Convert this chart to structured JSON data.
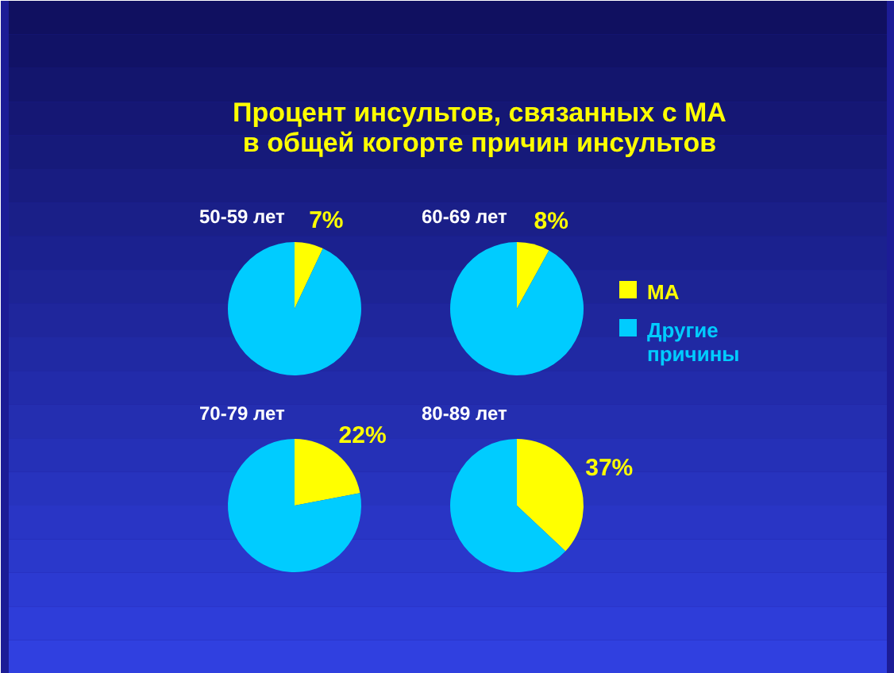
{
  "chart_data": [
    {
      "type": "pie",
      "title": "Процент инсультов, связанных с МА\nв общей когорте причин инсультов",
      "subtitle": "50-59 лет",
      "categories": [
        "МА",
        "Другие причины"
      ],
      "values": [
        7,
        93
      ],
      "colors": [
        "#ffff00",
        "#00ccff"
      ],
      "value_labels": [
        "7%",
        null
      ],
      "legend": "right"
    },
    {
      "type": "pie",
      "subtitle": "60-69 лет",
      "categories": [
        null,
        null
      ],
      "values": [
        8,
        92
      ],
      "colors": [
        "#ffff00",
        "#00ccff"
      ],
      "value_labels": [
        "8%",
        null
      ]
    },
    {
      "type": "pie",
      "subtitle": "70-79 лет",
      "categories": [
        null,
        null
      ],
      "values": [
        22,
        78
      ],
      "colors": [
        "#ffff00",
        "#00ccff"
      ],
      "value_labels": [
        "22%",
        null
      ]
    },
    {
      "type": "pie",
      "subtitle": "80-89 лет",
      "categories": [
        null,
        null
      ],
      "values": [
        37,
        63
      ],
      "colors": [
        "#ffff00",
        "#00ccff"
      ],
      "value_labels": [
        "37%",
        null
      ]
    }
  ]
}
